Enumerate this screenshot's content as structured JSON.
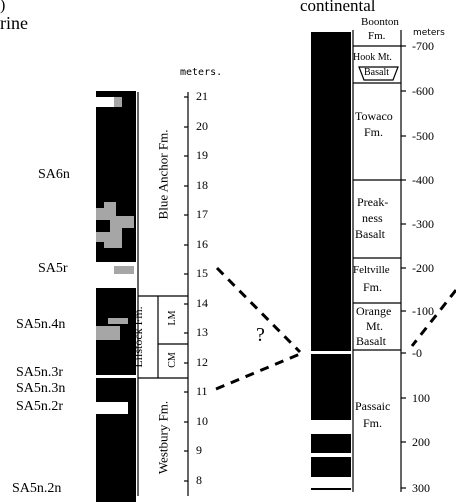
{
  "header": {
    "left_fragment_top": ")",
    "left_fragment": "rine",
    "right_title": "continental"
  },
  "left_column": {
    "scale_unit": "meters.",
    "scale_ticks": [
      "21",
      "20",
      "19",
      "18",
      "17",
      "16",
      "15",
      "14",
      "13",
      "12",
      "11",
      "10",
      "9",
      "8"
    ],
    "magnetozones": [
      "SA6n",
      "SA5r",
      "SA5n.4n",
      "SA5n.3r",
      "SA5n.3n",
      "SA5n.2r",
      "SA5n.2n"
    ],
    "formations": {
      "blue_anchor": "Blue Anchor Fm.",
      "lilstock": "Lilstock Fm.",
      "lm": "LM",
      "cm": "CM",
      "westbury": "Westbury Fm."
    }
  },
  "correlation": {
    "question_mark": "?"
  },
  "right_column": {
    "scale_unit": "meters",
    "scale_ticks": [
      "700",
      "600",
      "500",
      "400",
      "300",
      "200",
      "100",
      "0",
      "100",
      "200",
      "300"
    ],
    "formations": {
      "boonton": "Boonton",
      "boonton_fm": "Fm.",
      "hook_mt": "Hook Mt.",
      "basalt_hook": "Basalt",
      "towaco_1": "Towaco",
      "towaco_2": "Fm.",
      "preak_1": "Preak-",
      "preak_2": "ness",
      "preak_3": "Basalt",
      "feltville_1": "Feltville",
      "feltville_2": "Fm.",
      "orange_1": "Orange",
      "orange_2": "Mt.",
      "orange_3": "Basalt",
      "passaic_1": "Passaic",
      "passaic_2": "Fm."
    }
  },
  "colors": {
    "normal_polarity": "#000000",
    "reversed_polarity": "#ffffff",
    "uncertain_polarity": "#a6a6a6"
  }
}
